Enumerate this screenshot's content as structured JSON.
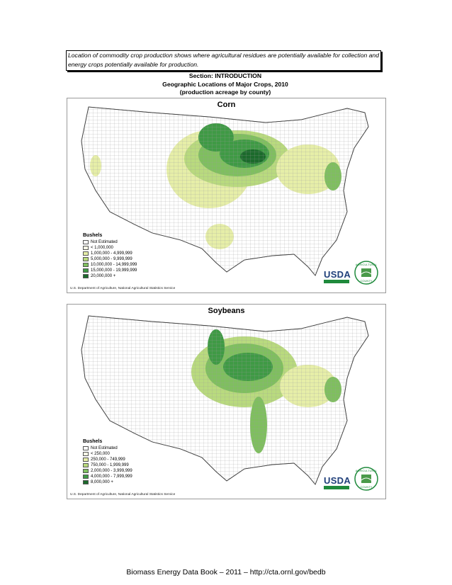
{
  "note": "Location of commodity crop production shows where agricultural residues are potentially available for collection and energy crops potentially available for production.",
  "heading": {
    "line1": "Section: INTRODUCTION",
    "line2": "Geographic Locations of Major Crops, 2010",
    "line3": "(production acreage by county)"
  },
  "maps": [
    {
      "title": "Corn",
      "legend_title": "Bushels",
      "legend": [
        {
          "label": "Not Estimated",
          "color": "#ffffff"
        },
        {
          "label": "< 1,000,000",
          "color": "#f7f7e6"
        },
        {
          "label": "1,000,000 -  4,999,999",
          "color": "#e6eea8"
        },
        {
          "label": "5,000,000 -  9,999,999",
          "color": "#b9da7e"
        },
        {
          "label": "10,000,000 - 14,999,999",
          "color": "#7fbf5f"
        },
        {
          "label": "15,000,000 - 19,999,999",
          "color": "#3f9a45"
        },
        {
          "label": "20,000,000 +",
          "color": "#1c6a2c"
        }
      ],
      "credit": "U.S. Department of Agriculture, National Agricultural Statistics Service",
      "logo_text": "USDA",
      "badge_text": "AGRICULTURAL COUNTY"
    },
    {
      "title": "Soybeans",
      "legend_title": "Bushels",
      "legend": [
        {
          "label": "Not Estimated",
          "color": "#ffffff"
        },
        {
          "label": "< 250,000",
          "color": "#f7f7e6"
        },
        {
          "label": "250,000 -    749,999",
          "color": "#e6eea8"
        },
        {
          "label": "750,000 - 1,999,999",
          "color": "#b9da7e"
        },
        {
          "label": "2,000,000 - 3,999,999",
          "color": "#7fbf5f"
        },
        {
          "label": "4,000,000 - 7,999,999",
          "color": "#3f9a45"
        },
        {
          "label": "8,000,000 +",
          "color": "#1c6a2c"
        }
      ],
      "credit": "U.S. Department of Agriculture, National Agricultural Statistics Service",
      "logo_text": "USDA",
      "badge_text": "AGRICULTURAL COUNTY"
    }
  ],
  "footer": "Biomass Energy Data Book – 2011 – http://cta.ornl.gov/bedb"
}
